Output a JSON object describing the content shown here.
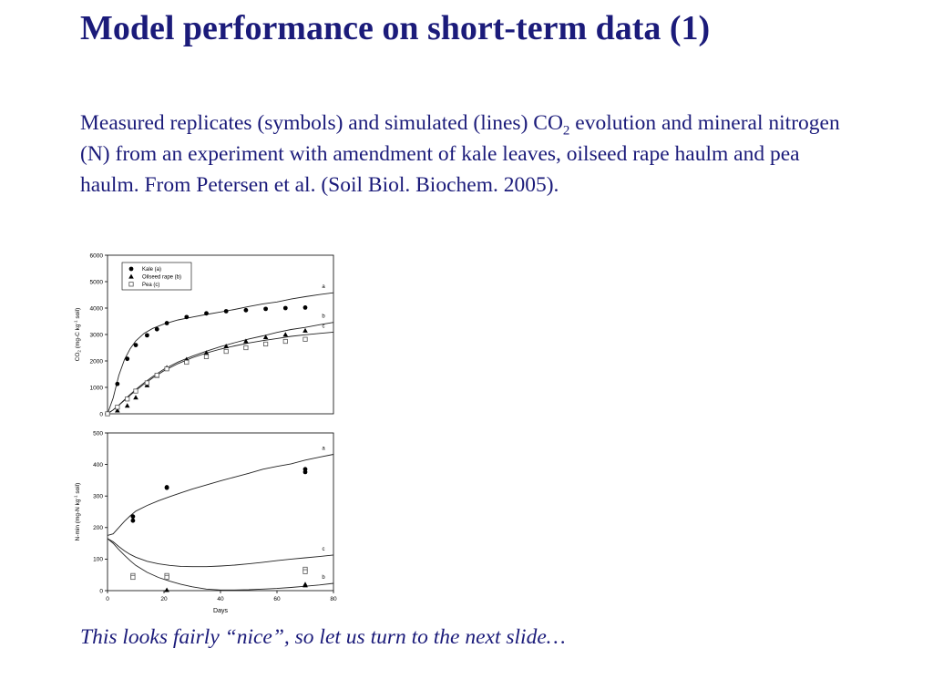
{
  "slide": {
    "title": "Model performance on short-term data (1)",
    "body_before_sub": "Measured replicates (symbols) and simulated (lines) CO",
    "body_sub": "2",
    "body_after_sub": " evolution and mineral nitrogen (N) from an experiment with amendment of kale leaves, oilseed rape haulm and pea haulm. From Petersen et al. (Soil Biol. Biochem. 2005).",
    "footer": "This looks fairly “nice”, so let us turn to the next slide…",
    "text_color": "#1b1b7a"
  },
  "chart_data": [
    {
      "type": "scatter",
      "ylabel_parts": [
        "CO",
        "2",
        " (mg-C kg",
        "-1",
        " soil)"
      ],
      "xlim": [
        0,
        80
      ],
      "ylim": [
        0,
        6000
      ],
      "yticks": [
        0,
        1000,
        2000,
        3000,
        4000,
        5000,
        6000
      ],
      "legend": {
        "placement": "top-left",
        "entries": [
          {
            "label": "Kale (a)",
            "marker": "filled-circle"
          },
          {
            "label": "Oilseed rape (b)",
            "marker": "filled-triangle"
          },
          {
            "label": "Pea (c)",
            "marker": "open-square"
          }
        ]
      },
      "series": [
        {
          "name": "Kale (a)",
          "marker": "filled-circle",
          "x": [
            0,
            3.5,
            7,
            10,
            14,
            17.5,
            21,
            28,
            35,
            42,
            49,
            56,
            63,
            70
          ],
          "y": [
            0,
            1130,
            2080,
            2600,
            2970,
            3200,
            3430,
            3660,
            3800,
            3880,
            3920,
            3970,
            4000,
            4020
          ]
        },
        {
          "name": "Oilseed rape (b)",
          "marker": "filled-triangle",
          "x": [
            0,
            3.5,
            7,
            10,
            14,
            17.5,
            21,
            28,
            35,
            42,
            49,
            56,
            63,
            70
          ],
          "y": [
            0,
            130,
            310,
            620,
            1080,
            1440,
            1750,
            2060,
            2310,
            2560,
            2750,
            2900,
            3000,
            3150
          ]
        },
        {
          "name": "Pea (c)",
          "marker": "open-square",
          "x": [
            0,
            3.5,
            7,
            10,
            14,
            17.5,
            21,
            28,
            35,
            42,
            49,
            56,
            63,
            70
          ],
          "y": [
            0,
            250,
            560,
            860,
            1170,
            1460,
            1700,
            1950,
            2160,
            2360,
            2500,
            2640,
            2740,
            2820
          ]
        }
      ],
      "simulated": [
        {
          "label": "a",
          "x": [
            0,
            2,
            4,
            6,
            8,
            10,
            13,
            16,
            20,
            25,
            30,
            35,
            40,
            45,
            50,
            55,
            60,
            65,
            70,
            75,
            80
          ],
          "y": [
            0,
            600,
            1450,
            2050,
            2460,
            2760,
            3050,
            3230,
            3400,
            3550,
            3660,
            3760,
            3850,
            3950,
            4060,
            4160,
            4230,
            4340,
            4430,
            4510,
            4580
          ]
        },
        {
          "label": "b",
          "x": [
            0,
            2,
            4,
            6,
            8,
            10,
            13,
            16,
            20,
            25,
            30,
            35,
            40,
            45,
            50,
            55,
            60,
            65,
            70,
            75,
            80
          ],
          "y": [
            0,
            150,
            330,
            530,
            730,
            920,
            1180,
            1410,
            1690,
            1960,
            2180,
            2370,
            2540,
            2690,
            2830,
            2950,
            3080,
            3190,
            3270,
            3370,
            3460
          ]
        },
        {
          "label": "c",
          "x": [
            0,
            2,
            4,
            6,
            8,
            10,
            13,
            16,
            20,
            25,
            30,
            35,
            40,
            45,
            50,
            55,
            60,
            65,
            70,
            75,
            80
          ],
          "y": [
            0,
            150,
            320,
            510,
            700,
            880,
            1130,
            1360,
            1630,
            1900,
            2120,
            2300,
            2450,
            2570,
            2680,
            2770,
            2850,
            2930,
            2990,
            3040,
            3090
          ]
        }
      ]
    },
    {
      "type": "scatter",
      "ylabel_parts": [
        "N-min (mg-N kg",
        "-1",
        " soil)"
      ],
      "xlabel": "Days",
      "xlim": [
        0,
        80
      ],
      "ylim": [
        0,
        500
      ],
      "xticks": [
        0,
        20,
        40,
        60,
        80
      ],
      "yticks": [
        0,
        100,
        200,
        300,
        400,
        500
      ],
      "series": [
        {
          "name": "Kale (a)",
          "marker": "filled-circle",
          "x": [
            9,
            9,
            21,
            21,
            70,
            70
          ],
          "y": [
            235,
            222,
            328,
            326,
            385,
            376
          ]
        },
        {
          "name": "Oilseed rape (b)",
          "marker": "filled-triangle",
          "x": [
            9,
            21,
            70,
            70
          ],
          "y": [
            42,
            2,
            20,
            17
          ]
        },
        {
          "name": "Pea (c)",
          "marker": "open-square",
          "x": [
            9,
            9,
            21,
            21,
            70,
            70
          ],
          "y": [
            48,
            42,
            48,
            42,
            68,
            60
          ]
        }
      ],
      "simulated": [
        {
          "label": "a",
          "x": [
            0,
            2,
            4,
            6,
            8,
            10,
            14,
            18,
            22,
            26,
            30,
            35,
            40,
            45,
            50,
            55,
            60,
            65,
            70,
            75,
            80
          ],
          "y": [
            175,
            180,
            200,
            220,
            237,
            252,
            270,
            285,
            298,
            310,
            322,
            335,
            348,
            360,
            372,
            385,
            394,
            402,
            414,
            423,
            432
          ]
        },
        {
          "label": "c",
          "x": [
            0,
            2,
            4,
            6,
            8,
            10,
            14,
            18,
            22,
            26,
            30,
            35,
            40,
            45,
            50,
            55,
            60,
            65,
            70,
            75,
            80
          ],
          "y": [
            165,
            155,
            140,
            126,
            115,
            106,
            93,
            85,
            80,
            77,
            76,
            76,
            78,
            81,
            85,
            90,
            95,
            100,
            104,
            108,
            113
          ]
        },
        {
          "label": "b",
          "x": [
            0,
            2,
            4,
            6,
            8,
            10,
            14,
            18,
            22,
            26,
            30,
            35,
            40,
            45,
            50,
            55,
            60,
            65,
            70,
            75,
            80
          ],
          "y": [
            165,
            150,
            130,
            112,
            95,
            80,
            58,
            42,
            30,
            20,
            12,
            5,
            2,
            2,
            3,
            5,
            7,
            10,
            14,
            18,
            23
          ]
        }
      ]
    }
  ]
}
